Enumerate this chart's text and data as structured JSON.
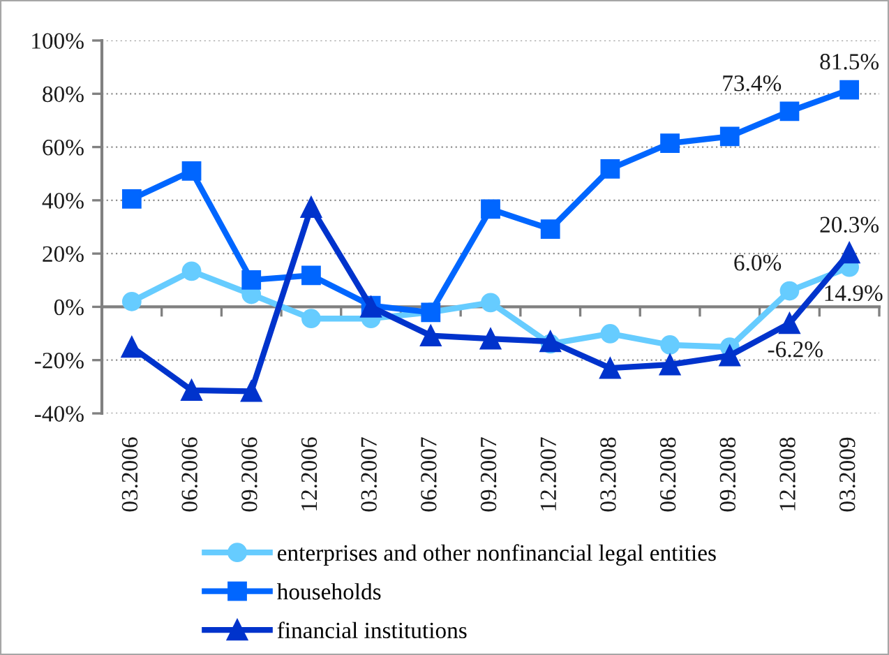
{
  "chart_data": {
    "type": "line",
    "categories": [
      "03.2006",
      "06.2006",
      "09.2006",
      "12.2006",
      "03.2007",
      "06.2007",
      "09.2007",
      "12.2007",
      "03.2008",
      "06.2008",
      "09.2008",
      "12.2008",
      "03.2009"
    ],
    "series": [
      {
        "name": "enterprises and other nonfinancial legal entities",
        "color": "#66ccff",
        "marker": "circle",
        "values": [
          2,
          13.4,
          4.7,
          -4.4,
          -4.4,
          -2,
          1.6,
          -13.9,
          -10.1,
          -14.3,
          -15.1,
          6.0,
          14.9
        ],
        "value_labels": [
          null,
          null,
          null,
          null,
          null,
          null,
          null,
          null,
          null,
          null,
          null,
          "6.0%",
          "14.9%"
        ]
      },
      {
        "name": "households",
        "color": "#0066ff",
        "marker": "square",
        "values": [
          40.5,
          51,
          10.1,
          11.8,
          0.5,
          -2.1,
          36.7,
          29.2,
          51.8,
          61.4,
          64,
          73.4,
          81.5
        ],
        "value_labels": [
          null,
          null,
          null,
          null,
          null,
          null,
          null,
          null,
          null,
          null,
          null,
          "73.4%",
          "81.5%"
        ]
      },
      {
        "name": "financial institutions",
        "color": "#0033cc",
        "marker": "triangle",
        "values": [
          -15.1,
          -31.3,
          -31.7,
          37.4,
          0,
          -10.8,
          -12,
          -13,
          -23,
          -21.7,
          -18.3,
          -6.2,
          20.3
        ],
        "value_labels": [
          null,
          null,
          null,
          null,
          null,
          null,
          null,
          null,
          null,
          null,
          null,
          "-6.2%",
          "20.3%"
        ]
      }
    ],
    "ylim": [
      -40,
      100
    ],
    "yticks": [
      {
        "value": -40,
        "label": "-40%"
      },
      {
        "value": -20,
        "label": "-20%"
      },
      {
        "value": 0,
        "label": "0%"
      },
      {
        "value": 20,
        "label": "20%"
      },
      {
        "value": 40,
        "label": "40%"
      },
      {
        "value": 60,
        "label": "60%"
      },
      {
        "value": 80,
        "label": "80%"
      },
      {
        "value": 100,
        "label": "100%"
      }
    ],
    "grid": "y",
    "legend": "bottom",
    "line_style": "solid"
  }
}
